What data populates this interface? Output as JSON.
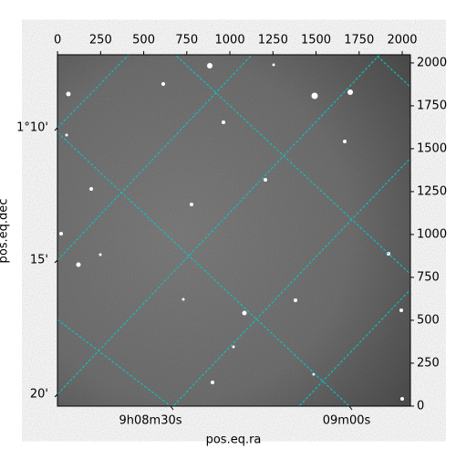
{
  "chart_data": {
    "type": "image",
    "xlabel": "pos.eq.ra",
    "ylabel": "pos.eq.dec",
    "xlim": [
      -0.5,
      2047.5
    ],
    "ylim": [
      -0.5,
      2047.5
    ],
    "xticks": [
      0,
      250,
      500,
      750,
      1000,
      1250,
      1500,
      1750,
      2000
    ],
    "yticks": [
      0,
      250,
      500,
      750,
      1000,
      1250,
      1500,
      1750,
      2000
    ],
    "ra_ticks": [
      "9h08m30s",
      "09m00s"
    ],
    "dec_ticks": [
      "1°10'",
      "15'",
      "20'"
    ],
    "grid_color": "#00cccc"
  }
}
